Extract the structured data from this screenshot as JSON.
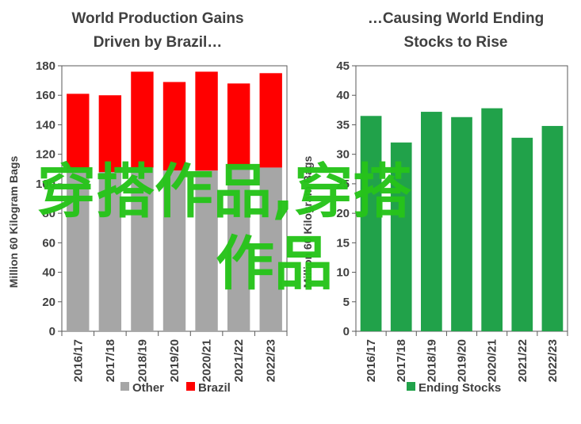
{
  "charts": [
    {
      "title_line1": "World Production Gains",
      "title_line2": "Driven by Brazil…",
      "ylabel": "Million 60 Kilogram Bags",
      "legend": [
        {
          "label": "Other",
          "color": "#a6a6a6"
        },
        {
          "label": "Brazil",
          "color": "#ff0000"
        }
      ]
    },
    {
      "title_line1": "…Causing World Ending",
      "title_line2": "Stocks to Rise",
      "ylabel": "Million 60 Kilogram Bags",
      "legend": [
        {
          "label": "Ending Stocks",
          "color": "#21a24a"
        }
      ]
    }
  ],
  "chart_data": [
    {
      "type": "bar",
      "stacked": true,
      "categories": [
        "2016/17",
        "2017/18",
        "2018/19",
        "2019/20",
        "2020/21",
        "2021/22",
        "2022/23"
      ],
      "series": [
        {
          "name": "Other",
          "color": "#a6a6a6",
          "values": [
            110,
            108,
            111,
            109,
            109,
            110,
            111
          ]
        },
        {
          "name": "Brazil",
          "color": "#ff0000",
          "values": [
            51,
            52,
            65,
            60,
            67,
            58,
            64
          ]
        }
      ],
      "ylim": [
        0,
        180
      ],
      "yticks": [
        0,
        20,
        40,
        60,
        80,
        100,
        120,
        140,
        160,
        180
      ],
      "grid": false,
      "legend_position": "bottom"
    },
    {
      "type": "bar",
      "categories": [
        "2016/17",
        "2017/18",
        "2018/19",
        "2019/20",
        "2020/21",
        "2021/22",
        "2022/23"
      ],
      "series": [
        {
          "name": "Ending Stocks",
          "color": "#21a24a",
          "values": [
            36.5,
            32.0,
            37.2,
            36.3,
            37.8,
            32.8,
            34.8
          ]
        }
      ],
      "ylim": [
        0,
        45
      ],
      "yticks": [
        0,
        5,
        10,
        15,
        20,
        25,
        30,
        35,
        40,
        45
      ],
      "grid": false,
      "legend_position": "bottom"
    }
  ],
  "watermark": {
    "line1": "穿搭作品,穿搭",
    "line2": "作品"
  }
}
